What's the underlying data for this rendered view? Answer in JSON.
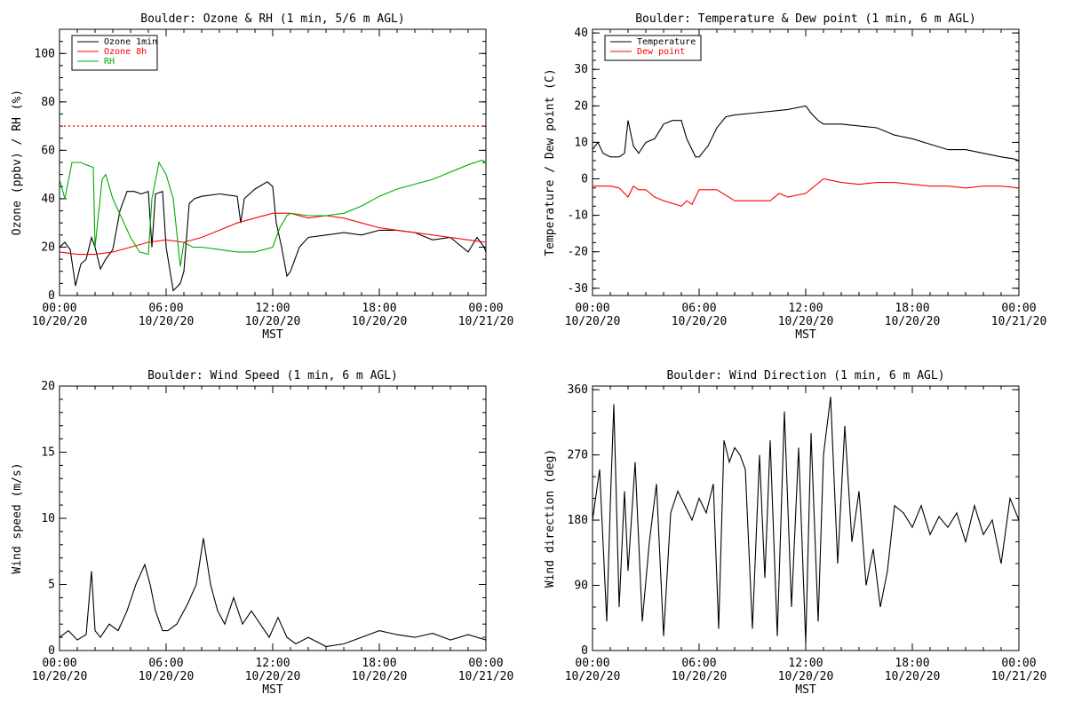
{
  "chart_data": [
    {
      "type": "line",
      "title": "Boulder: Ozone & RH (1 min, 5/6 m AGL)",
      "xlabel": "MST",
      "ylabel": "Ozone (ppbv) / RH (%)",
      "x_ticks": [
        {
          "t": "00:00",
          "d": "10/20/20"
        },
        {
          "t": "06:00",
          "d": "10/20/20"
        },
        {
          "t": "12:00",
          "d": "10/20/20"
        },
        {
          "t": "18:00",
          "d": "10/20/20"
        },
        {
          "t": "00:00",
          "d": "10/21/20"
        }
      ],
      "xlim_hours": [
        0,
        24
      ],
      "ylim": [
        0,
        110
      ],
      "y_ticks": [
        0,
        20,
        40,
        60,
        80,
        100
      ],
      "legend_position": "top-left",
      "reference_line": {
        "y": 70,
        "style": "dotted",
        "color": "#ff0000"
      },
      "series": [
        {
          "name": "Ozone 1min",
          "color": "#000000",
          "x": [
            0,
            0.3,
            0.6,
            0.9,
            1.2,
            1.5,
            1.8,
            2.0,
            2.3,
            2.6,
            3.0,
            3.4,
            3.8,
            4.2,
            4.6,
            5.0,
            5.2,
            5.4,
            5.8,
            6.0,
            6.4,
            6.8,
            7.0,
            7.3,
            7.6,
            8.0,
            9,
            10,
            10.2,
            10.4,
            11,
            11.7,
            12,
            12.2,
            12.5,
            12.8,
            13,
            13.5,
            14,
            15,
            16,
            17,
            18,
            19,
            20,
            21,
            22,
            23,
            23.5,
            23.9,
            24
          ],
          "y": [
            20,
            22,
            19,
            4,
            13,
            15,
            24,
            20,
            11,
            15,
            19,
            35,
            43,
            43,
            42,
            43,
            20,
            42,
            43,
            20,
            2,
            5,
            10,
            38,
            40,
            41,
            42,
            41,
            30,
            40,
            44,
            47,
            45,
            30,
            20,
            8,
            10,
            20,
            24,
            25,
            26,
            25,
            27,
            27,
            26,
            23,
            24,
            18,
            24,
            20,
            18
          ]
        },
        {
          "name": "Ozone 8h",
          "color": "#ff0000",
          "x": [
            0,
            1,
            2,
            3,
            4,
            5,
            6,
            7,
            8,
            9,
            10,
            11,
            12,
            13,
            14,
            15,
            16,
            17,
            18,
            19,
            20,
            21,
            22,
            23,
            24
          ],
          "y": [
            18,
            17,
            17,
            18,
            20,
            22,
            23,
            22,
            24,
            27,
            30,
            32,
            34,
            34,
            32,
            33,
            32,
            30,
            28,
            27,
            26,
            25,
            24,
            23,
            22
          ]
        },
        {
          "name": "RH",
          "color": "#00aa00",
          "x": [
            0,
            0.3,
            0.7,
            1.2,
            1.5,
            1.9,
            2.0,
            2.4,
            2.6,
            3.0,
            3.5,
            4.0,
            4.5,
            5.0,
            5.2,
            5.6,
            6.0,
            6.4,
            6.8,
            7.0,
            7.5,
            8,
            9,
            10,
            11,
            12,
            12.4,
            12.8,
            13,
            14,
            15,
            16,
            17,
            18,
            19,
            20,
            21,
            22,
            23,
            23.8,
            24
          ],
          "y": [
            48,
            40,
            55,
            55,
            54,
            53,
            20,
            48,
            50,
            40,
            32,
            24,
            18,
            17,
            40,
            55,
            50,
            40,
            12,
            22,
            20,
            20,
            19,
            18,
            18,
            20,
            28,
            33,
            34,
            33,
            33,
            34,
            37,
            41,
            44,
            46,
            48,
            51,
            54,
            56,
            55
          ]
        }
      ]
    },
    {
      "type": "line",
      "title": "Boulder: Temperature & Dew point (1 min, 6 m AGL)",
      "xlabel": "MST",
      "ylabel": "Temperature / Dew point (C)",
      "x_ticks": [
        {
          "t": "00:00",
          "d": "10/20/20"
        },
        {
          "t": "06:00",
          "d": "10/20/20"
        },
        {
          "t": "12:00",
          "d": "10/20/20"
        },
        {
          "t": "18:00",
          "d": "10/20/20"
        },
        {
          "t": "00:00",
          "d": "10/21/20"
        }
      ],
      "xlim_hours": [
        0,
        24
      ],
      "ylim": [
        -32,
        41
      ],
      "y_ticks": [
        -30,
        -20,
        -10,
        0,
        10,
        20,
        30,
        40
      ],
      "legend_position": "top-left",
      "series": [
        {
          "name": "Temperature",
          "color": "#000000",
          "x": [
            0,
            0.3,
            0.6,
            1,
            1.5,
            1.8,
            2.0,
            2.3,
            2.6,
            3,
            3.5,
            4,
            4.5,
            5,
            5.3,
            5.8,
            6,
            6.5,
            7,
            7.5,
            8,
            9,
            10,
            11,
            12,
            12.3,
            12.7,
            13,
            14,
            15,
            16,
            17,
            18,
            19,
            20,
            21,
            22,
            23,
            23.7,
            24
          ],
          "y": [
            8,
            10,
            7,
            6,
            6,
            7,
            16,
            9,
            7,
            10,
            11,
            15,
            16,
            16,
            11,
            6,
            6,
            9,
            14,
            17,
            17.5,
            18,
            18.5,
            19,
            20,
            18,
            16,
            15,
            15,
            14.5,
            14,
            12,
            11,
            9.5,
            8,
            8,
            7,
            6,
            5.5,
            5
          ]
        },
        {
          "name": "Dew point",
          "color": "#ff0000",
          "x": [
            0,
            1,
            1.5,
            2,
            2.3,
            2.6,
            3,
            3.5,
            4,
            5,
            5.3,
            5.6,
            6,
            7,
            8,
            9,
            10,
            10.5,
            11,
            12,
            12.5,
            13,
            14,
            15,
            16,
            17,
            18,
            19,
            20,
            21,
            22,
            23,
            24
          ],
          "y": [
            -2,
            -2,
            -2.5,
            -5,
            -2,
            -3,
            -3,
            -5,
            -6,
            -7.5,
            -6,
            -7,
            -3,
            -3,
            -6,
            -6,
            -6,
            -4,
            -5,
            -4,
            -2,
            0,
            -1,
            -1.5,
            -1,
            -1,
            -1.5,
            -2,
            -2,
            -2.5,
            -2,
            -2,
            -2.5
          ]
        }
      ]
    },
    {
      "type": "line",
      "title": "Boulder: Wind Speed (1 min, 6 m AGL)",
      "xlabel": "MST",
      "ylabel": "Wind speed (m/s)",
      "x_ticks": [
        {
          "t": "00:00",
          "d": "10/20/20"
        },
        {
          "t": "06:00",
          "d": "10/20/20"
        },
        {
          "t": "12:00",
          "d": "10/20/20"
        },
        {
          "t": "18:00",
          "d": "10/20/20"
        },
        {
          "t": "00:00",
          "d": "10/21/20"
        }
      ],
      "xlim_hours": [
        0,
        24
      ],
      "ylim": [
        0,
        20
      ],
      "y_ticks": [
        0,
        5,
        10,
        15,
        20
      ],
      "series": [
        {
          "name": "",
          "color": "#000000",
          "x": [
            0,
            0.5,
            1,
            1.5,
            1.8,
            2.0,
            2.3,
            2.8,
            3.3,
            3.8,
            4.3,
            4.8,
            5.1,
            5.4,
            5.8,
            6.1,
            6.6,
            7.2,
            7.7,
            8.1,
            8.5,
            8.9,
            9.3,
            9.8,
            10.3,
            10.8,
            11.3,
            11.8,
            12.3,
            12.8,
            13.3,
            14,
            15,
            16,
            17,
            18,
            19,
            20,
            21,
            22,
            23,
            24
          ],
          "y": [
            1,
            1.5,
            0.8,
            1.2,
            6,
            1.5,
            1,
            2,
            1.5,
            3,
            5,
            6.5,
            5,
            3,
            1.5,
            1.5,
            2,
            3.5,
            5,
            8.5,
            5,
            3,
            2,
            4,
            2,
            3,
            2,
            1,
            2.5,
            1,
            0.5,
            1,
            0.3,
            0.5,
            1,
            1.5,
            1.2,
            1,
            1.3,
            0.8,
            1.2,
            0.8
          ]
        }
      ]
    },
    {
      "type": "line",
      "title": "Boulder: Wind Direction (1 min, 6 m AGL)",
      "xlabel": "MST",
      "ylabel": "Wind direction (deg)",
      "x_ticks": [
        {
          "t": "00:00",
          "d": "10/20/20"
        },
        {
          "t": "06:00",
          "d": "10/20/20"
        },
        {
          "t": "12:00",
          "d": "10/20/20"
        },
        {
          "t": "18:00",
          "d": "10/20/20"
        },
        {
          "t": "00:00",
          "d": "10/21/20"
        }
      ],
      "xlim_hours": [
        0,
        24
      ],
      "ylim": [
        0,
        365
      ],
      "y_ticks": [
        0,
        90,
        180,
        270,
        360
      ],
      "series": [
        {
          "name": "",
          "color": "#000000",
          "x": [
            0,
            0.4,
            0.8,
            1.0,
            1.2,
            1.5,
            1.8,
            2.0,
            2.4,
            2.8,
            3.2,
            3.6,
            4.0,
            4.4,
            4.8,
            5.2,
            5.6,
            6.0,
            6.4,
            6.8,
            7.1,
            7.4,
            7.7,
            8.0,
            8.3,
            8.6,
            9.0,
            9.4,
            9.7,
            10.0,
            10.4,
            10.8,
            11.2,
            11.6,
            12.0,
            12.3,
            12.7,
            13.0,
            13.4,
            13.8,
            14.2,
            14.6,
            15.0,
            15.4,
            15.8,
            16.2,
            16.6,
            17,
            17.5,
            18,
            18.5,
            19,
            19.5,
            20,
            20.5,
            21,
            21.5,
            22,
            22.5,
            23,
            23.5,
            24
          ],
          "y": [
            180,
            250,
            40,
            200,
            340,
            60,
            220,
            110,
            260,
            40,
            150,
            230,
            20,
            190,
            220,
            200,
            180,
            210,
            190,
            230,
            30,
            290,
            260,
            280,
            270,
            250,
            30,
            270,
            100,
            290,
            20,
            330,
            60,
            280,
            10,
            300,
            40,
            270,
            350,
            120,
            310,
            150,
            220,
            90,
            140,
            60,
            110,
            200,
            190,
            170,
            200,
            160,
            185,
            170,
            190,
            150,
            200,
            160,
            180,
            120,
            210,
            180
          ]
        }
      ]
    }
  ]
}
